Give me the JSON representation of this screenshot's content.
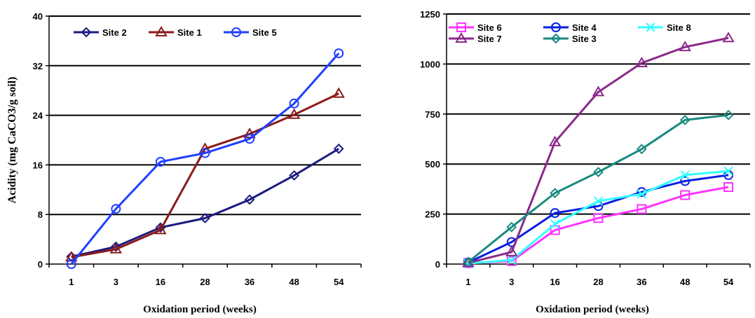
{
  "chart_data": [
    {
      "type": "line",
      "categories": [
        "1",
        "3",
        "16",
        "28",
        "36",
        "48",
        "54"
      ],
      "xlabel": "Oxidation period (weeks)",
      "ylabel": "Acidity (mg CaCO3/g soil)",
      "ylim": [
        0,
        40
      ],
      "yticks": [
        0,
        8,
        16,
        24,
        32,
        40
      ],
      "grid": "horizontal",
      "legend": "top-left",
      "series": [
        {
          "name": "Site 2",
          "color": "#1a1a80",
          "marker": "diamond",
          "values": [
            1.2,
            2.8,
            5.9,
            7.4,
            10.4,
            14.3,
            18.6
          ]
        },
        {
          "name": "Site 1",
          "color": "#8b1a1a",
          "marker": "triangle",
          "values": [
            1.1,
            2.4,
            5.5,
            18.6,
            21.0,
            24.1,
            27.5
          ]
        },
        {
          "name": "Site 5",
          "color": "#1f3fff",
          "marker": "circle",
          "values": [
            0.0,
            8.9,
            16.5,
            17.9,
            20.2,
            25.9,
            34.0
          ]
        }
      ]
    },
    {
      "type": "line",
      "categories": [
        "1",
        "3",
        "16",
        "28",
        "36",
        "48",
        "54"
      ],
      "xlabel": "Oxidation period (weeks)",
      "ylabel": "",
      "ylim": [
        0,
        1250
      ],
      "yticks": [
        0,
        250,
        500,
        750,
        1000,
        1250
      ],
      "grid": "horizontal",
      "legend": "top",
      "series": [
        {
          "name": "Site 6",
          "color": "#ff33ff",
          "marker": "square",
          "values": [
            5,
            15,
            170,
            230,
            275,
            345,
            385
          ]
        },
        {
          "name": "Site 4",
          "color": "#0a1ee0",
          "marker": "circle",
          "values": [
            8,
            110,
            255,
            290,
            360,
            415,
            445
          ]
        },
        {
          "name": "Site 8",
          "color": "#33ffff",
          "marker": "x",
          "values": [
            3,
            20,
            200,
            315,
            350,
            445,
            465
          ]
        },
        {
          "name": "Site 7",
          "color": "#8a2a8a",
          "marker": "triangle",
          "values": [
            6,
            60,
            610,
            860,
            1005,
            1085,
            1130
          ]
        },
        {
          "name": "Site 3",
          "color": "#1a8a80",
          "marker": "diamond",
          "values": [
            10,
            185,
            355,
            460,
            575,
            720,
            745
          ]
        }
      ]
    }
  ]
}
